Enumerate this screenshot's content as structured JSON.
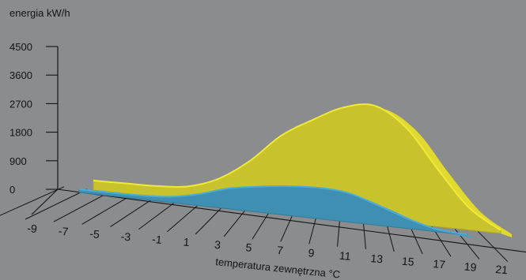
{
  "chart_data": {
    "type": "area",
    "title": "",
    "ylabel": "energia kW/h",
    "xlabel": "temperatura zewnętrzna °C",
    "y_ticks": [
      "4500",
      "3600",
      "2700",
      "1800",
      "900",
      "0"
    ],
    "ylim": [
      0,
      4500
    ],
    "x_ticks": [
      "-9",
      "-7",
      "-5",
      "-3",
      "-1",
      "1",
      "3",
      "5",
      "7",
      "9",
      "11",
      "13",
      "15",
      "17",
      "19",
      "21"
    ],
    "xlim": [
      -9,
      21
    ],
    "grid": true,
    "legend": "none",
    "series": [
      {
        "color": "#c8c22c",
        "x": [
          -5,
          -3,
          -1,
          1,
          3,
          5,
          7,
          9,
          11,
          13,
          15,
          17,
          19,
          21
        ],
        "values": [
          300,
          320,
          340,
          430,
          780,
          1450,
          2350,
          2950,
          3450,
          3600,
          3000,
          1800,
          700,
          100
        ]
      },
      {
        "color": "#3f8fb3",
        "x": [
          -5,
          -3,
          -1,
          1,
          3,
          5,
          7,
          9,
          11,
          13,
          15,
          17,
          19,
          21
        ],
        "values": [
          120,
          130,
          150,
          220,
          450,
          800,
          1000,
          1150,
          1220,
          1150,
          800,
          400,
          100,
          20
        ]
      }
    ]
  }
}
